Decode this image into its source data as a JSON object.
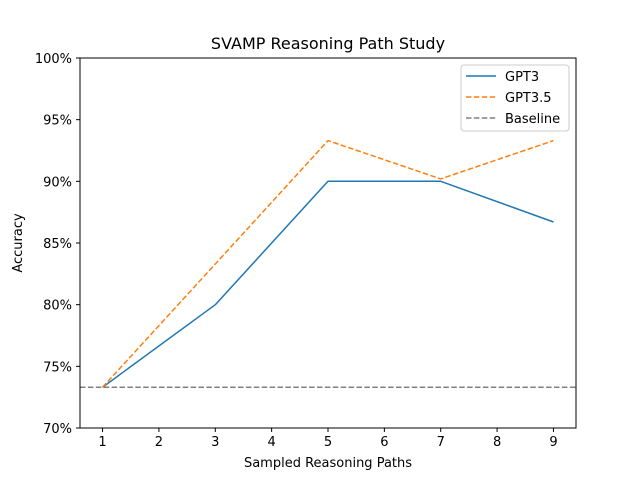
{
  "chart_data": {
    "type": "line",
    "title": "SVAMP Reasoning Path Study",
    "xlabel": "Sampled Reasoning Paths",
    "ylabel": "Accuracy",
    "xlim": [
      0.6,
      9.4
    ],
    "ylim": [
      70,
      100
    ],
    "x_ticks": [
      1,
      2,
      3,
      4,
      5,
      6,
      7,
      8,
      9
    ],
    "x_tick_labels": [
      "1",
      "2",
      "3",
      "4",
      "5",
      "6",
      "7",
      "8",
      "9"
    ],
    "y_ticks": [
      70,
      75,
      80,
      85,
      90,
      95,
      100
    ],
    "y_tick_labels": [
      "70%",
      "75%",
      "80%",
      "85%",
      "90%",
      "95%",
      "100%"
    ],
    "grid": false,
    "legend_position": "top-right",
    "series": [
      {
        "name": "GPT3",
        "color": "#1f77b4",
        "style": "solid",
        "x": [
          1,
          3,
          5,
          7,
          9
        ],
        "values": [
          73.3,
          80.0,
          90.0,
          90.0,
          86.7
        ]
      },
      {
        "name": "GPT3.5",
        "color": "#ff7f0e",
        "style": "dashed",
        "x": [
          1,
          3,
          5,
          7,
          9
        ],
        "values": [
          73.3,
          83.3,
          93.3,
          90.2,
          93.3
        ]
      }
    ],
    "baseline": {
      "name": "Baseline",
      "color": "#808080",
      "style": "dashed",
      "value": 73.3
    }
  }
}
